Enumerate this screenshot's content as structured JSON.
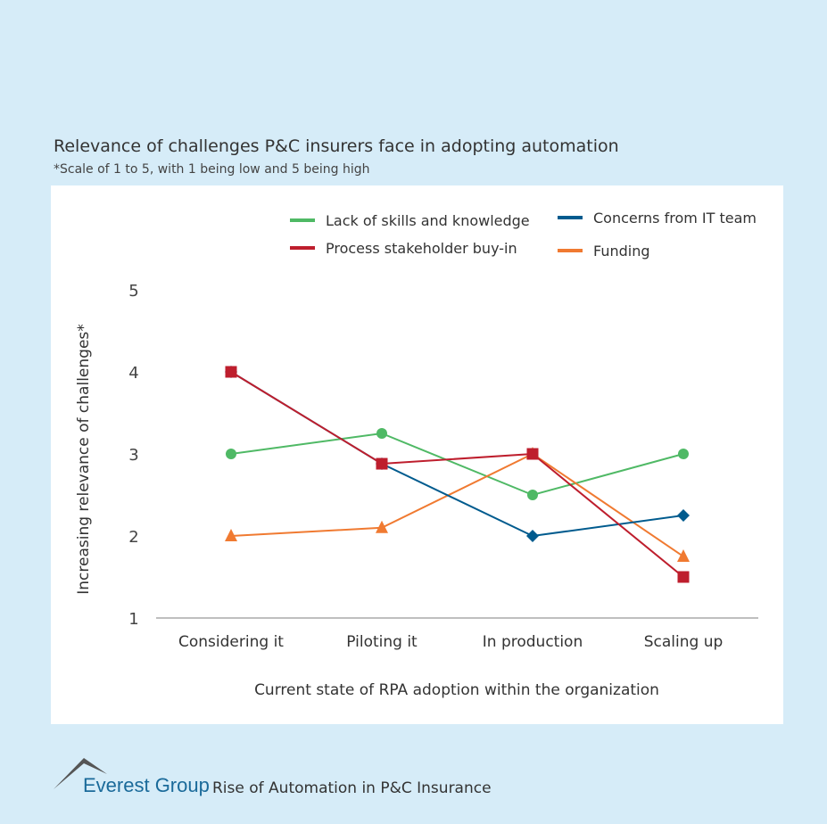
{
  "chart_data": {
    "type": "line",
    "title": "Relevance of challenges P&C insurers face in adopting automation",
    "subtitle": "*Scale of 1 to 5, with 1 being low and 5 being high",
    "xlabel": "Current state of RPA adoption within the organization",
    "ylabel": "Increasing relevance of challenges*",
    "categories": [
      "Considering it",
      "Piloting it",
      "In production",
      "Scaling up"
    ],
    "yticks": [
      "1",
      "2",
      "3",
      "4",
      "5"
    ],
    "ylim": [
      1,
      5
    ],
    "grid": false,
    "legend_position": "top",
    "series": [
      {
        "name": "Lack of skills and knowledge",
        "color": "#4fb965",
        "marker": "circle",
        "values": [
          3,
          3.25,
          2.5,
          3
        ]
      },
      {
        "name": "Concerns from IT team",
        "color": "#005b8e",
        "marker": "diamond",
        "values": [
          4,
          2.88,
          2,
          2.25
        ]
      },
      {
        "name": "Process stakeholder buy-in",
        "color": "#be1e2d",
        "marker": "square",
        "values": [
          4,
          2.88,
          3,
          1.5
        ]
      },
      {
        "name": "Funding",
        "color": "#f07a31",
        "marker": "triangle",
        "values": [
          2,
          2.1,
          3,
          1.75
        ]
      }
    ]
  },
  "footer": {
    "brand": "Everest Group",
    "text": "Rise of Automation in P&C Insurance"
  }
}
